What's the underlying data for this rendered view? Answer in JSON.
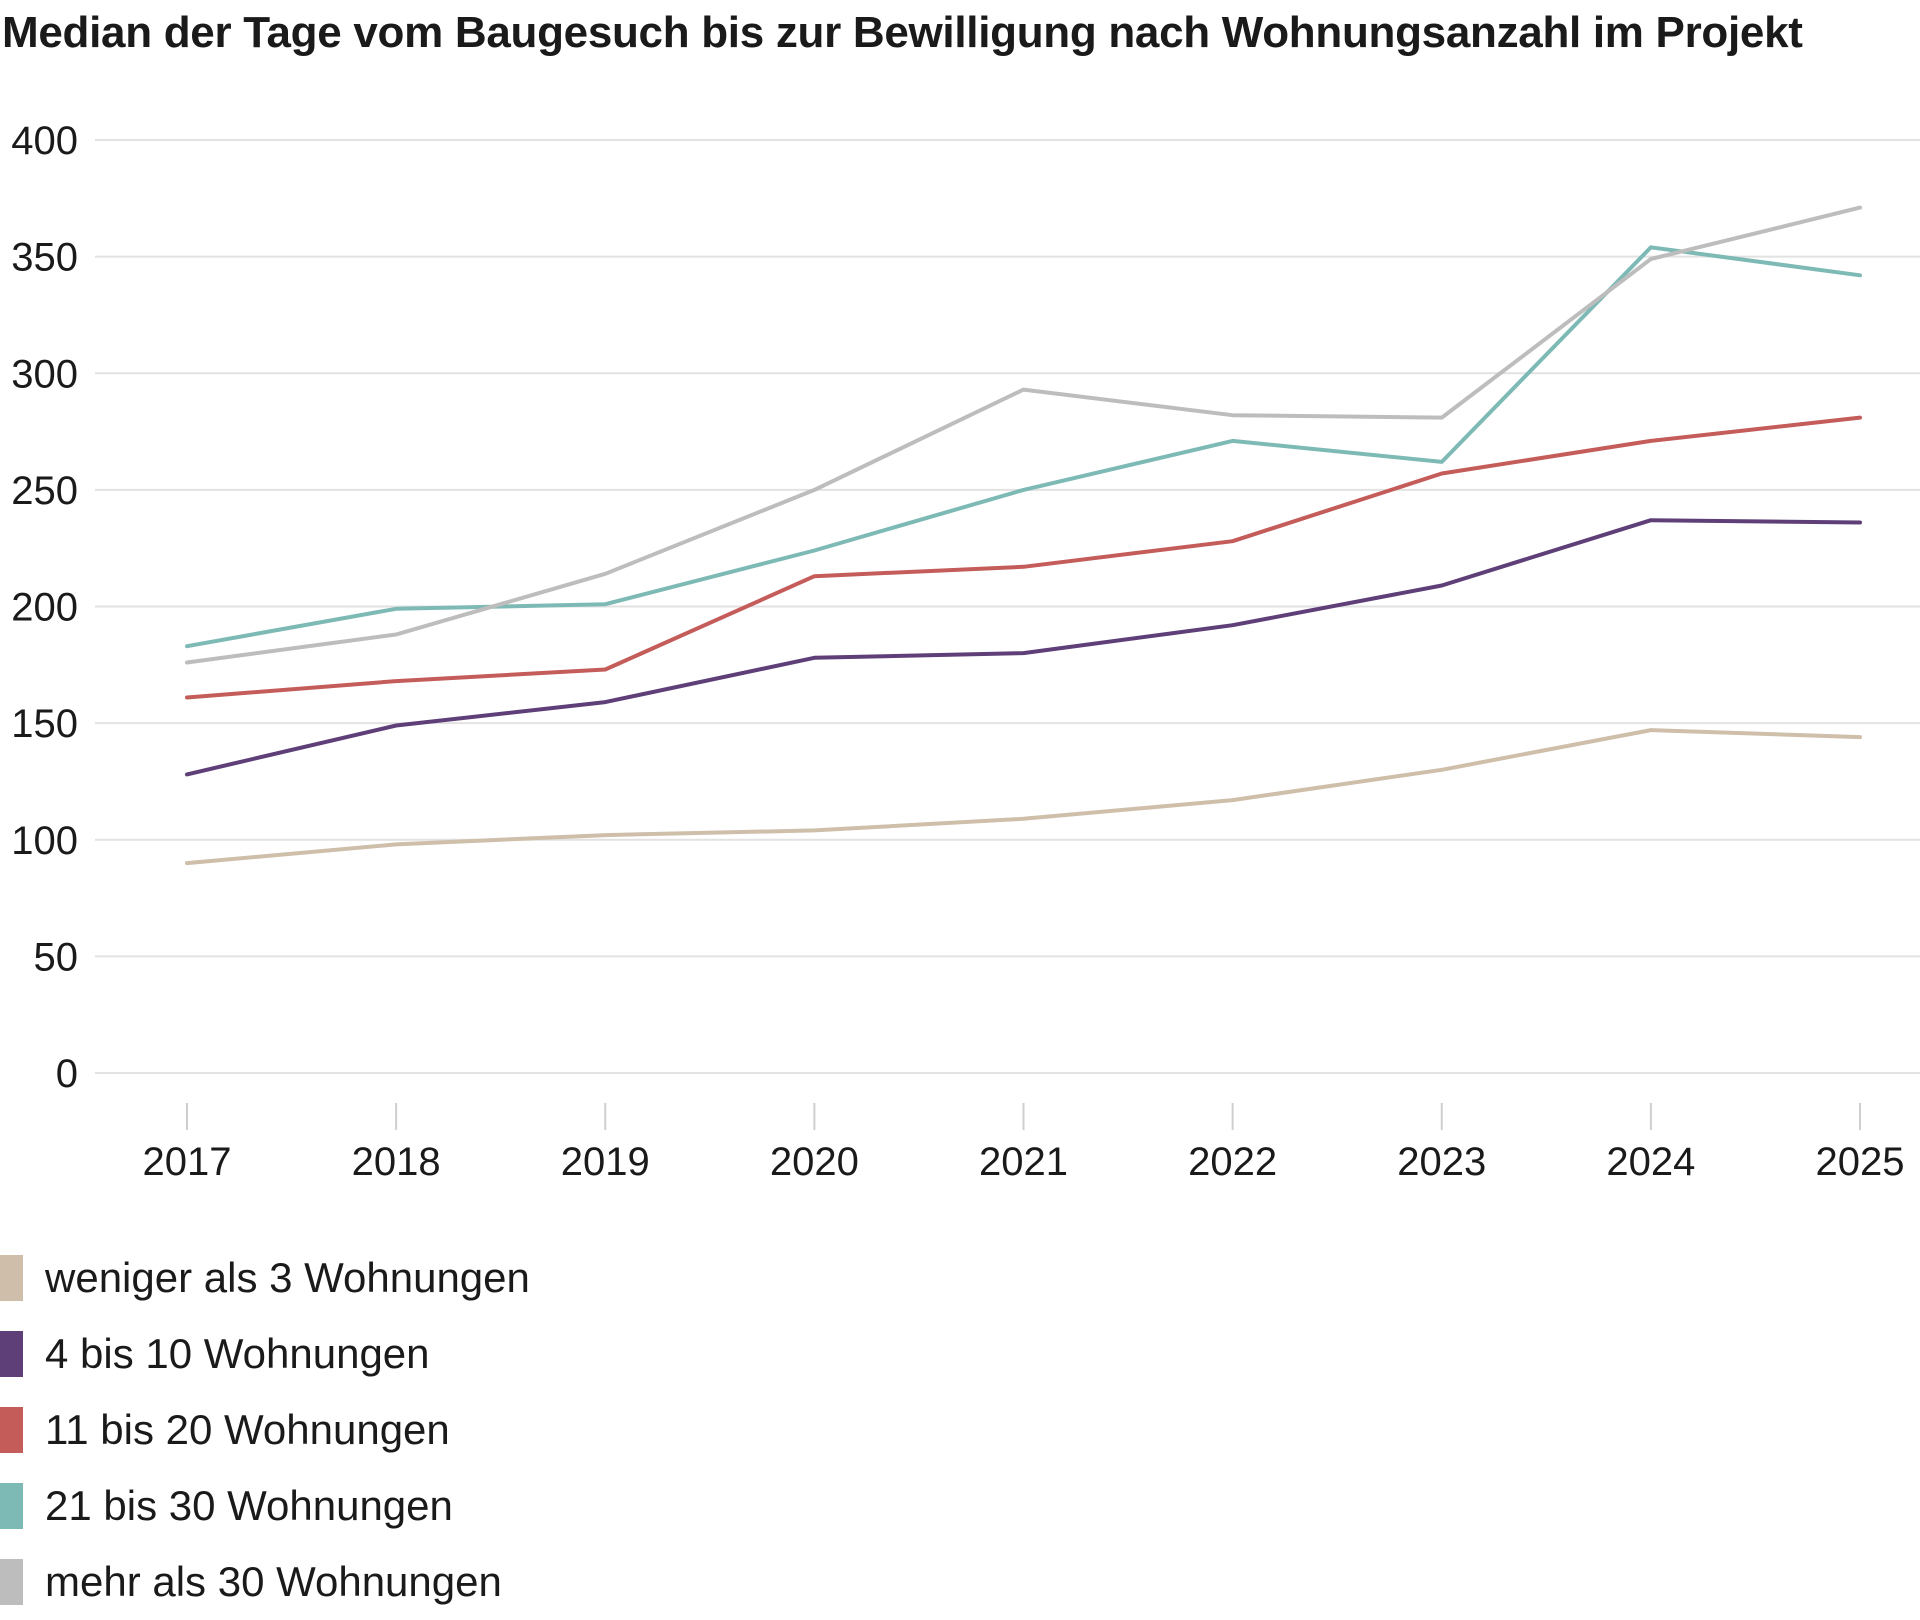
{
  "chart_data": {
    "type": "line",
    "title": "Median der Tage vom Baugesuch bis zur Bewilligung nach Wohnungsanzahl im Projekt",
    "xlabel": "",
    "ylabel": "",
    "x": [
      "2017",
      "2018",
      "2019",
      "2020",
      "2021",
      "2022",
      "2023",
      "2024",
      "2025"
    ],
    "yticks": [
      "0",
      "50",
      "100",
      "150",
      "200",
      "250",
      "300",
      "350",
      "400"
    ],
    "ylim": [
      0,
      400
    ],
    "grid": "horizontal",
    "legend_position": "bottom-left",
    "series": [
      {
        "name": "weniger als 3 Wohnungen",
        "color": "#cfbeaa",
        "values": [
          90,
          98,
          102,
          104,
          109,
          117,
          130,
          147,
          144
        ]
      },
      {
        "name": "4 bis 10 Wohnungen",
        "color": "#5e3f78",
        "values": [
          128,
          149,
          159,
          178,
          180,
          192,
          209,
          237,
          236
        ]
      },
      {
        "name": "11 bis 20 Wohnungen",
        "color": "#c45c5a",
        "values": [
          161,
          168,
          173,
          213,
          217,
          228,
          257,
          271,
          281
        ]
      },
      {
        "name": "21 bis 30 Wohnungen",
        "color": "#7ebab5",
        "values": [
          183,
          199,
          201,
          224,
          250,
          271,
          262,
          354,
          342
        ]
      },
      {
        "name": "mehr als 30 Wohnungen",
        "color": "#bdbdbd",
        "values": [
          176,
          188,
          214,
          250,
          293,
          282,
          281,
          349,
          371
        ]
      }
    ]
  }
}
